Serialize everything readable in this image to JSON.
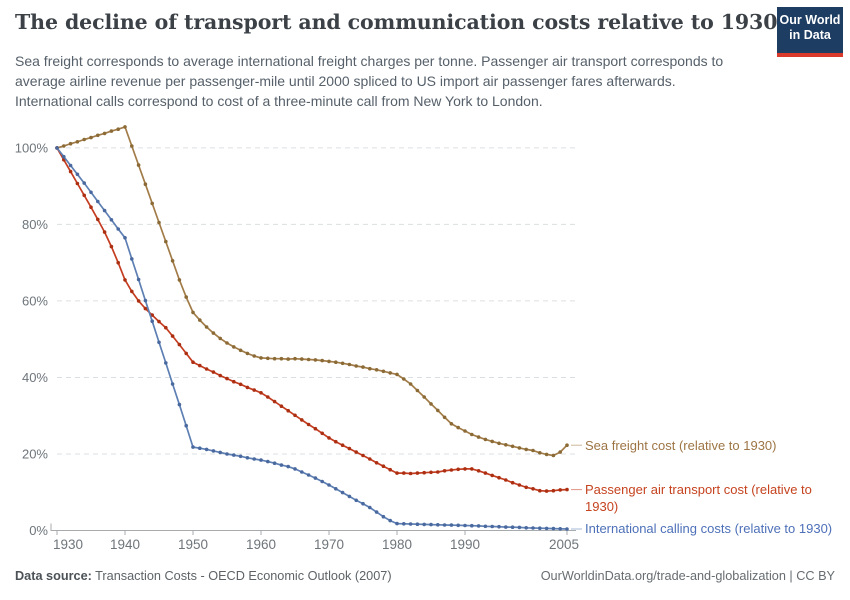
{
  "header": {
    "title": "The decline of transport and communication costs relative to 1930",
    "subtitle": "Sea freight corresponds to average international freight charges per tonne. Passenger air transport corresponds to average airline revenue per passenger-mile until 2000 spliced to US import air passenger fares afterwards. International calls correspond to cost of a three-minute call from New York to London.",
    "logo": {
      "line1": "Our World",
      "line2": "in Data",
      "bg_color": "#1d3d63",
      "accent_color": "#d93a2b"
    }
  },
  "chart_data": {
    "type": "line",
    "title": "The decline of transport and communication costs relative to 1930",
    "xlim": [
      1930,
      2005
    ],
    "ylim": [
      0,
      106
    ],
    "yticks": [
      0,
      20,
      40,
      60,
      80,
      100
    ],
    "ytick_suffix": "%",
    "xticks": [
      1930,
      1940,
      1950,
      1960,
      1970,
      1980,
      1990,
      2005
    ],
    "grid": "horizontal-dashed",
    "grid_color": "#dcdfe1",
    "axis_color": "#a7abae",
    "axis_text_color": "#6e757b",
    "legend_position": "right-of-line-end-labels",
    "x": [
      1930,
      1931,
      1932,
      1933,
      1934,
      1935,
      1936,
      1937,
      1938,
      1939,
      1940,
      1941,
      1942,
      1943,
      1944,
      1945,
      1946,
      1947,
      1948,
      1949,
      1950,
      1951,
      1952,
      1953,
      1954,
      1955,
      1956,
      1957,
      1958,
      1959,
      1960,
      1961,
      1962,
      1963,
      1964,
      1965,
      1966,
      1967,
      1968,
      1969,
      1970,
      1971,
      1972,
      1973,
      1974,
      1975,
      1976,
      1977,
      1978,
      1979,
      1980,
      1981,
      1982,
      1983,
      1984,
      1985,
      1986,
      1987,
      1988,
      1989,
      1990,
      1991,
      1992,
      1993,
      1994,
      1995,
      1996,
      1997,
      1998,
      1999,
      2000,
      2001,
      2002,
      2003,
      2004,
      2005
    ],
    "series": [
      {
        "name": "Sea freight cost (relative to 1930)",
        "color": "#a27c48",
        "dot_color": "#8b6a35",
        "label_color": "#9d7544",
        "values": [
          100,
          100.5,
          101.1,
          101.6,
          102.2,
          102.7,
          103.3,
          103.8,
          104.4,
          104.9,
          105.5,
          100.5,
          95.5,
          90.5,
          85.5,
          80.5,
          75.5,
          70.5,
          65.5,
          61,
          57,
          55,
          53.2,
          51.6,
          50.2,
          49,
          48,
          47.1,
          46.3,
          45.6,
          45.1,
          45,
          44.9,
          44.9,
          44.8,
          44.9,
          44.8,
          44.7,
          44.6,
          44.4,
          44.2,
          44,
          43.7,
          43.4,
          43,
          42.7,
          42.3,
          42,
          41.6,
          41.2,
          40.8,
          39.6,
          38.3,
          36.6,
          34.9,
          33.1,
          31.4,
          29.6,
          27.9,
          26.9,
          26,
          25.1,
          24.4,
          23.8,
          23.3,
          22.8,
          22.4,
          22,
          21.6,
          21.2,
          20.9,
          20.3,
          19.9,
          19.6,
          20.5,
          22.3
        ]
      },
      {
        "name": "Passenger air transport cost (relative to 1930)",
        "color": "#c43d21",
        "dot_color": "#ad2f12",
        "label_color": "#c5431f",
        "values": [
          100,
          96.9,
          93.8,
          90.7,
          87.6,
          84.5,
          81.3,
          78,
          74.2,
          70,
          65.5,
          62.5,
          60,
          58,
          56.3,
          54.6,
          53,
          50.8,
          48.6,
          46.3,
          44,
          43.1,
          42.2,
          41.4,
          40.5,
          39.7,
          38.9,
          38.2,
          37.4,
          36.7,
          36,
          34.9,
          33.7,
          32.5,
          31.3,
          30.1,
          28.9,
          27.7,
          26.6,
          25.4,
          24.2,
          23.2,
          22.3,
          21.4,
          20.5,
          19.6,
          18.7,
          17.7,
          16.8,
          15.9,
          15,
          15,
          14.9,
          15,
          15.1,
          15.2,
          15.3,
          15.6,
          15.8,
          16,
          16.1,
          16.1,
          15.6,
          15,
          14.4,
          13.8,
          13.2,
          12.5,
          11.9,
          11.3,
          10.9,
          10.4,
          10.3,
          10.4,
          10.6,
          10.7
        ]
      },
      {
        "name": "International calling costs (relative to 1930)",
        "color": "#5d7fb3",
        "dot_color": "#49699f",
        "label_color": "#4d70b8",
        "values": [
          100,
          97.7,
          95.4,
          93.1,
          90.8,
          88.4,
          86,
          83.6,
          81.2,
          78.8,
          76.5,
          71,
          65.6,
          60.1,
          54.7,
          49.2,
          43.8,
          38.3,
          32.9,
          27.4,
          21.8,
          21.5,
          21.2,
          20.8,
          20.4,
          20,
          19.7,
          19.4,
          19,
          18.7,
          18.4,
          18,
          17.6,
          17.1,
          16.7,
          16.1,
          15.3,
          14.5,
          13.7,
          12.8,
          11.9,
          10.9,
          9.9,
          8.9,
          7.9,
          7,
          6,
          4.8,
          3.6,
          2.6,
          1.8,
          1.75,
          1.7,
          1.65,
          1.6,
          1.55,
          1.5,
          1.45,
          1.4,
          1.35,
          1.3,
          1.25,
          1.2,
          1.1,
          1.05,
          1,
          0.9,
          0.85,
          0.8,
          0.7,
          0.65,
          0.6,
          0.55,
          0.5,
          0.45,
          0.4
        ]
      }
    ]
  },
  "footer": {
    "source_label": "Data source:",
    "source_value": " Transaction Costs - OECD Economic Outlook (2007)",
    "credit": "OurWorldinData.org/trade-and-globalization | CC BY"
  }
}
